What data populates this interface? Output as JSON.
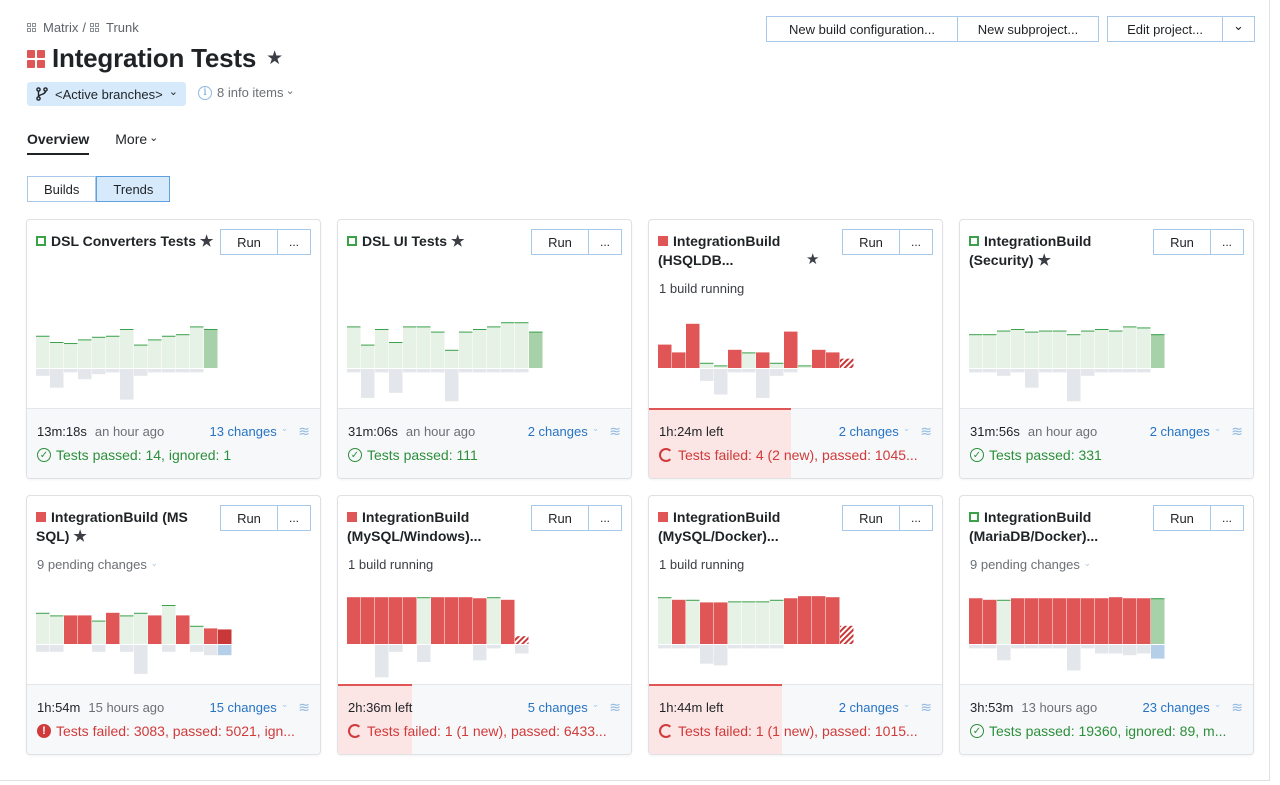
{
  "breadcrumb": {
    "root": "Matrix",
    "sep": "/",
    "child": "Trunk"
  },
  "project": {
    "title": "Integration Tests",
    "star": "★"
  },
  "branch": {
    "label": "<Active branches>",
    "chevron": "⌄"
  },
  "info": {
    "icon": "i",
    "label": "8 info items",
    "chevron": "⌄"
  },
  "actions": {
    "new_build_config": "New build configuration...",
    "new_subproject": "New subproject...",
    "edit_project": "Edit project...",
    "dropdown": "⌄"
  },
  "tabs": {
    "overview": "Overview",
    "more": "More",
    "more_chevron": "⌄"
  },
  "view_toggle": {
    "builds": "Builds",
    "trends": "Trends",
    "selected": "Trends"
  },
  "run_label": "Run",
  "more_label": "...",
  "colors": {
    "ok": "#3ca14b",
    "ok_bar": "#e7f2e7",
    "ok_bar_last": "#a7d1a9",
    "fail": "#e05555",
    "fail_dark": "#c83838",
    "neg_bar": "#e3e6ea",
    "neg_blue": "#b5cfe8",
    "link": "#2673c4"
  },
  "cards": [
    {
      "status": "ok",
      "title": "DSL Converters Tests",
      "starred": true,
      "subtitle": "",
      "duration": "13m:18s",
      "ago": "an hour ago",
      "changes": "13 changes",
      "result_icon": "ok",
      "result": "Tests passed: 14, ignored: 1",
      "running_progress": null,
      "bars": [
        {
          "v": 0.62,
          "t": "ok"
        },
        {
          "v": 0.5,
          "t": "ok"
        },
        {
          "v": 0.48,
          "t": "ok"
        },
        {
          "v": 0.55,
          "t": "ok"
        },
        {
          "v": 0.6,
          "t": "ok"
        },
        {
          "v": 0.62,
          "t": "ok"
        },
        {
          "v": 0.75,
          "t": "ok"
        },
        {
          "v": 0.45,
          "t": "ok"
        },
        {
          "v": 0.55,
          "t": "ok"
        },
        {
          "v": 0.62,
          "t": "ok"
        },
        {
          "v": 0.65,
          "t": "ok"
        },
        {
          "v": 0.8,
          "t": "ok"
        },
        {
          "v": 0.75,
          "t": "ok_last"
        }
      ],
      "neg": [
        0.2,
        0.55,
        0.1,
        0.3,
        0.15,
        0.1,
        0.9,
        0.2,
        0.1,
        0.1,
        0.1,
        0.1,
        0.0
      ]
    },
    {
      "status": "ok",
      "title": "DSL UI Tests",
      "starred": true,
      "subtitle": "",
      "duration": "31m:06s",
      "ago": "an hour ago",
      "changes": "2 changes",
      "result_icon": "ok",
      "result": "Tests passed: 111",
      "running_progress": null,
      "bars": [
        {
          "v": 0.8,
          "t": "ok"
        },
        {
          "v": 0.45,
          "t": "ok"
        },
        {
          "v": 0.75,
          "t": "ok"
        },
        {
          "v": 0.5,
          "t": "ok"
        },
        {
          "v": 0.8,
          "t": "ok"
        },
        {
          "v": 0.8,
          "t": "ok"
        },
        {
          "v": 0.7,
          "t": "ok"
        },
        {
          "v": 0.35,
          "t": "ok"
        },
        {
          "v": 0.7,
          "t": "ok"
        },
        {
          "v": 0.75,
          "t": "ok"
        },
        {
          "v": 0.8,
          "t": "ok"
        },
        {
          "v": 0.88,
          "t": "ok"
        },
        {
          "v": 0.88,
          "t": "ok"
        },
        {
          "v": 0.7,
          "t": "ok_last"
        }
      ],
      "neg": [
        0.1,
        0.85,
        0.1,
        0.7,
        0.1,
        0.1,
        0.1,
        0.95,
        0.1,
        0.1,
        0.1,
        0.1,
        0.1,
        0.0
      ]
    },
    {
      "status": "fail",
      "title": "IntegrationBuild (HSQLDB...",
      "starred": true,
      "star_separate": true,
      "subtitle": "1 build running",
      "duration": "1h:24m left",
      "ago": "",
      "changes": "2 changes",
      "result_icon": "spin",
      "result": "Tests failed: 4 (2 new), passed: 1045...",
      "running_progress": 0.48,
      "bars": [
        {
          "v": 0.45,
          "t": "fail"
        },
        {
          "v": 0.3,
          "t": "fail"
        },
        {
          "v": 0.85,
          "t": "fail"
        },
        {
          "v": 0.1,
          "t": "ok"
        },
        {
          "v": 0.05,
          "t": "ok"
        },
        {
          "v": 0.35,
          "t": "fail"
        },
        {
          "v": 0.3,
          "t": "ok"
        },
        {
          "v": 0.3,
          "t": "fail"
        },
        {
          "v": 0.1,
          "t": "ok"
        },
        {
          "v": 0.7,
          "t": "fail"
        },
        {
          "v": 0.05,
          "t": "ok"
        },
        {
          "v": 0.35,
          "t": "fail"
        },
        {
          "v": 0.3,
          "t": "fail"
        },
        {
          "v": 0.18,
          "t": "stripe"
        }
      ],
      "neg": [
        0.0,
        0.0,
        0.0,
        0.35,
        0.75,
        0.1,
        0.1,
        0.85,
        0.2,
        0.1,
        0.0,
        0.0,
        0.0,
        0.0
      ]
    },
    {
      "status": "ok",
      "title": "IntegrationBuild (Security)",
      "starred": true,
      "subtitle": "",
      "duration": "31m:56s",
      "ago": "an hour ago",
      "changes": "2 changes",
      "result_icon": "ok",
      "result": "Tests passed: 331",
      "running_progress": null,
      "bars": [
        {
          "v": 0.65,
          "t": "ok"
        },
        {
          "v": 0.65,
          "t": "ok"
        },
        {
          "v": 0.72,
          "t": "ok"
        },
        {
          "v": 0.75,
          "t": "ok"
        },
        {
          "v": 0.7,
          "t": "ok"
        },
        {
          "v": 0.72,
          "t": "ok"
        },
        {
          "v": 0.72,
          "t": "ok"
        },
        {
          "v": 0.65,
          "t": "ok"
        },
        {
          "v": 0.72,
          "t": "ok"
        },
        {
          "v": 0.75,
          "t": "ok"
        },
        {
          "v": 0.72,
          "t": "ok"
        },
        {
          "v": 0.8,
          "t": "ok"
        },
        {
          "v": 0.78,
          "t": "ok"
        },
        {
          "v": 0.65,
          "t": "ok_last"
        }
      ],
      "neg": [
        0.1,
        0.1,
        0.2,
        0.1,
        0.55,
        0.1,
        0.1,
        0.95,
        0.2,
        0.1,
        0.1,
        0.1,
        0.1,
        0.0
      ]
    },
    {
      "status": "fail",
      "title": "IntegrationBuild (MS SQL)",
      "starred": true,
      "subtitle": "9 pending changes",
      "subtitle_chevron": true,
      "duration": "1h:54m",
      "ago": "15 hours ago",
      "changes": "15 changes",
      "result_icon": "err",
      "result": "Tests failed: 3083, passed: 5021, ign...",
      "running_progress": null,
      "bars": [
        {
          "v": 0.6,
          "t": "ok"
        },
        {
          "v": 0.55,
          "t": "ok"
        },
        {
          "v": 0.55,
          "t": "fail"
        },
        {
          "v": 0.55,
          "t": "fail"
        },
        {
          "v": 0.45,
          "t": "ok"
        },
        {
          "v": 0.6,
          "t": "fail"
        },
        {
          "v": 0.55,
          "t": "ok"
        },
        {
          "v": 0.6,
          "t": "ok"
        },
        {
          "v": 0.55,
          "t": "fail"
        },
        {
          "v": 0.75,
          "t": "ok"
        },
        {
          "v": 0.55,
          "t": "fail"
        },
        {
          "v": 0.35,
          "t": "ok"
        },
        {
          "v": 0.3,
          "t": "fail"
        },
        {
          "v": 0.28,
          "t": "fail_dark"
        }
      ],
      "neg": [
        0.2,
        0.2,
        0.0,
        0.0,
        0.2,
        0.0,
        0.2,
        0.85,
        0.0,
        0.2,
        0.0,
        0.2,
        0.3,
        0.3
      ]
    },
    {
      "status": "fail",
      "title": "IntegrationBuild (MySQL/Windows)...",
      "starred": false,
      "subtitle": "1 build running",
      "duration": "2h:36m left",
      "ago": "",
      "changes": "5 changes",
      "result_icon": "spin",
      "result": "Tests failed: 1 (1 new), passed: 6433...",
      "running_progress": 0.25,
      "bars": [
        {
          "v": 0.9,
          "t": "fail"
        },
        {
          "v": 0.9,
          "t": "fail"
        },
        {
          "v": 0.9,
          "t": "fail"
        },
        {
          "v": 0.9,
          "t": "fail"
        },
        {
          "v": 0.9,
          "t": "fail"
        },
        {
          "v": 0.9,
          "t": "ok"
        },
        {
          "v": 0.9,
          "t": "fail"
        },
        {
          "v": 0.9,
          "t": "fail"
        },
        {
          "v": 0.9,
          "t": "fail"
        },
        {
          "v": 0.88,
          "t": "fail"
        },
        {
          "v": 0.9,
          "t": "ok"
        },
        {
          "v": 0.85,
          "t": "fail"
        },
        {
          "v": 0.15,
          "t": "stripe"
        }
      ],
      "neg": [
        0.0,
        0.0,
        0.95,
        0.2,
        0.0,
        0.5,
        0.0,
        0.0,
        0.0,
        0.45,
        0.1,
        0.0,
        0.25
      ]
    },
    {
      "status": "fail",
      "title": "IntegrationBuild (MySQL/Docker)...",
      "starred": false,
      "subtitle": "1 build running",
      "duration": "1h:44m left",
      "ago": "",
      "changes": "2 changes",
      "result_icon": "spin",
      "result": "Tests failed: 1 (1 new), passed: 1015...",
      "running_progress": 0.45,
      "bars": [
        {
          "v": 0.9,
          "t": "ok"
        },
        {
          "v": 0.85,
          "t": "fail"
        },
        {
          "v": 0.85,
          "t": "ok"
        },
        {
          "v": 0.8,
          "t": "fail"
        },
        {
          "v": 0.8,
          "t": "fail"
        },
        {
          "v": 0.82,
          "t": "ok"
        },
        {
          "v": 0.82,
          "t": "ok"
        },
        {
          "v": 0.82,
          "t": "ok"
        },
        {
          "v": 0.85,
          "t": "ok"
        },
        {
          "v": 0.88,
          "t": "fail"
        },
        {
          "v": 0.92,
          "t": "fail"
        },
        {
          "v": 0.92,
          "t": "fail"
        },
        {
          "v": 0.9,
          "t": "fail"
        },
        {
          "v": 0.35,
          "t": "stripe"
        }
      ],
      "neg": [
        0.1,
        0.1,
        0.1,
        0.55,
        0.6,
        0.1,
        0.1,
        0.1,
        0.1,
        0.0,
        0.0,
        0.0,
        0.0,
        0.0
      ]
    },
    {
      "status": "ok",
      "title": "IntegrationBuild (MariaDB/Docker)...",
      "starred": false,
      "subtitle": "9 pending changes",
      "subtitle_chevron": true,
      "duration": "3h:53m",
      "ago": "13 hours ago",
      "changes": "23 changes",
      "result_icon": "ok",
      "result": "Tests passed: 19360, ignored: 89, m...",
      "running_progress": null,
      "bars": [
        {
          "v": 0.88,
          "t": "fail"
        },
        {
          "v": 0.85,
          "t": "fail"
        },
        {
          "v": 0.85,
          "t": "ok"
        },
        {
          "v": 0.88,
          "t": "fail"
        },
        {
          "v": 0.88,
          "t": "fail"
        },
        {
          "v": 0.88,
          "t": "fail"
        },
        {
          "v": 0.88,
          "t": "fail"
        },
        {
          "v": 0.88,
          "t": "fail"
        },
        {
          "v": 0.88,
          "t": "fail"
        },
        {
          "v": 0.88,
          "t": "fail"
        },
        {
          "v": 0.9,
          "t": "fail"
        },
        {
          "v": 0.88,
          "t": "fail"
        },
        {
          "v": 0.88,
          "t": "fail"
        },
        {
          "v": 0.88,
          "t": "ok_last"
        }
      ],
      "neg": [
        0.1,
        0.1,
        0.45,
        0.1,
        0.1,
        0.1,
        0.1,
        0.75,
        0.1,
        0.25,
        0.25,
        0.3,
        0.25,
        0.4
      ]
    }
  ]
}
